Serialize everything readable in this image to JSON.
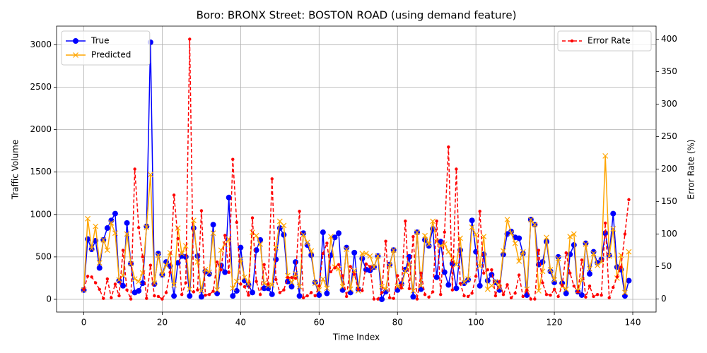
{
  "chart_data": {
    "type": "line",
    "title": "Boro: BRONX Street: BOSTON ROAD (using demand feature)",
    "x_label": "Time Index",
    "y_label": "Traffic Volume",
    "y2_label": "Error Rate (%)",
    "x": [
      0,
      1,
      2,
      3,
      4,
      5,
      6,
      7,
      8,
      9,
      10,
      11,
      12,
      13,
      14,
      15,
      16,
      17,
      18,
      19,
      20,
      21,
      22,
      23,
      24,
      25,
      26,
      27,
      28,
      29,
      30,
      31,
      32,
      33,
      34,
      35,
      36,
      37,
      38,
      39,
      40,
      41,
      42,
      43,
      44,
      45,
      46,
      47,
      48,
      49,
      50,
      51,
      52,
      53,
      54,
      55,
      56,
      57,
      58,
      59,
      60,
      61,
      62,
      63,
      64,
      65,
      66,
      67,
      68,
      69,
      70,
      71,
      72,
      73,
      74,
      75,
      76,
      77,
      78,
      79,
      80,
      81,
      82,
      83,
      84,
      85,
      86,
      87,
      88,
      89,
      90,
      91,
      92,
      93,
      94,
      95,
      96,
      97,
      98,
      99,
      100,
      101,
      102,
      103,
      104,
      105,
      106,
      107,
      108,
      109,
      110,
      111,
      112,
      113,
      114,
      115,
      116,
      117,
      118,
      119,
      120,
      121,
      122,
      123,
      124,
      125,
      126,
      127,
      128,
      129,
      130,
      131,
      132,
      133,
      134,
      135,
      136,
      137,
      138,
      139
    ],
    "series": [
      {
        "name": "True",
        "color": "#0000ff",
        "marker": "o",
        "linestyle": "solid",
        "axis": "y",
        "values": [
          110,
          710,
          590,
          690,
          370,
          700,
          840,
          930,
          1010,
          220,
          160,
          900,
          420,
          80,
          100,
          190,
          860,
          3030,
          180,
          540,
          290,
          440,
          390,
          40,
          430,
          510,
          500,
          40,
          840,
          510,
          30,
          330,
          300,
          880,
          70,
          400,
          320,
          1200,
          40,
          100,
          610,
          220,
          170,
          80,
          580,
          700,
          130,
          130,
          60,
          470,
          840,
          760,
          210,
          150,
          440,
          40,
          780,
          640,
          520,
          200,
          50,
          790,
          70,
          520,
          730,
          780,
          110,
          610,
          80,
          550,
          120,
          480,
          350,
          340,
          380,
          510,
          0,
          90,
          410,
          580,
          110,
          180,
          350,
          500,
          30,
          790,
          120,
          700,
          630,
          830,
          260,
          680,
          320,
          170,
          420,
          130,
          580,
          190,
          230,
          930,
          560,
          160,
          530,
          220,
          290,
          200,
          110,
          530,
          770,
          800,
          730,
          720,
          540,
          50,
          940,
          880,
          410,
          440,
          680,
          330,
          200,
          500,
          190,
          70,
          530,
          640,
          90,
          50,
          660,
          300,
          560,
          430,
          470,
          780,
          520,
          1010,
          380,
          350,
          40,
          220
        ]
      },
      {
        "name": "Predicted",
        "color": "#ffa500",
        "marker": "x",
        "linestyle": "solid",
        "axis": "y",
        "values": [
          110,
          950,
          600,
          860,
          430,
          700,
          580,
          900,
          780,
          230,
          280,
          770,
          420,
          240,
          210,
          310,
          850,
          1470,
          190,
          520,
          290,
          400,
          550,
          170,
          840,
          540,
          630,
          120,
          930,
          440,
          100,
          350,
          320,
          780,
          110,
          580,
          650,
          710,
          130,
          210,
          470,
          260,
          180,
          790,
          750,
          650,
          190,
          160,
          170,
          610,
          920,
          870,
          280,
          200,
          300,
          150,
          760,
          670,
          570,
          190,
          110,
          240,
          130,
          740,
          380,
          360,
          150,
          590,
          120,
          340,
          100,
          540,
          540,
          510,
          380,
          510,
          150,
          120,
          400,
          580,
          150,
          150,
          330,
          420,
          100,
          790,
          160,
          750,
          650,
          920,
          680,
          630,
          650,
          560,
          480,
          410,
          720,
          200,
          240,
          850,
          760,
          390,
          740,
          120,
          160,
          210,
          140,
          570,
          940,
          780,
          660,
          450,
          560,
          120,
          940,
          880,
          100,
          330,
          730,
          350,
          230,
          480,
          150,
          120,
          740,
          770,
          100,
          230,
          650,
          360,
          540,
          400,
          440,
          1690,
          510,
          830,
          250,
          520,
          80,
          560
        ]
      },
      {
        "name": "Error Rate",
        "color": "#ff0000",
        "marker": ".",
        "linestyle": "dashed",
        "axis": "y2",
        "values": [
          15,
          35,
          34,
          25,
          15,
          1,
          31,
          2,
          23,
          5,
          75,
          14,
          0,
          200,
          110,
          65,
          1,
          52,
          5,
          4,
          0,
          10,
          41,
          160,
          93,
          7,
          25,
          400,
          11,
          14,
          136,
          6,
          7,
          12,
          57,
          45,
          98,
          41,
          215,
          118,
          23,
          19,
          6,
          125,
          27,
          7,
          53,
          23,
          185,
          30,
          10,
          14,
          33,
          33,
          32,
          135,
          2,
          5,
          10,
          5,
          20,
          70,
          86,
          42,
          48,
          53,
          36,
          4,
          50,
          38,
          15,
          13,
          54,
          50,
          0,
          0,
          10,
          89,
          2,
          1,
          36,
          17,
          120,
          16,
          96,
          0,
          40,
          7,
          3,
          11,
          120,
          7,
          103,
          234,
          14,
          200,
          24,
          5,
          4,
          9,
          35,
          135,
          40,
          45,
          45,
          5,
          27,
          7,
          22,
          2,
          9,
          37,
          4,
          14,
          0,
          0,
          75,
          25,
          7,
          6,
          15,
          4,
          21,
          71,
          40,
          20,
          11,
          60,
          3,
          20,
          4,
          7,
          6,
          117,
          2,
          18,
          34,
          49,
          100,
          153
        ]
      }
    ],
    "xlim": [
      -6.95,
      145.95
    ],
    "xticks": [
      0,
      20,
      40,
      60,
      80,
      100,
      120,
      140
    ],
    "ylim": [
      -150,
      3220
    ],
    "yticks": [
      0,
      500,
      1000,
      1500,
      2000,
      2500,
      3000
    ],
    "y2lim": [
      -20,
      420
    ],
    "y2ticks": [
      0,
      50,
      100,
      150,
      200,
      250,
      300,
      350,
      400
    ],
    "grid": true,
    "legend_loc": "upper left",
    "legend2_loc": "upper right"
  }
}
